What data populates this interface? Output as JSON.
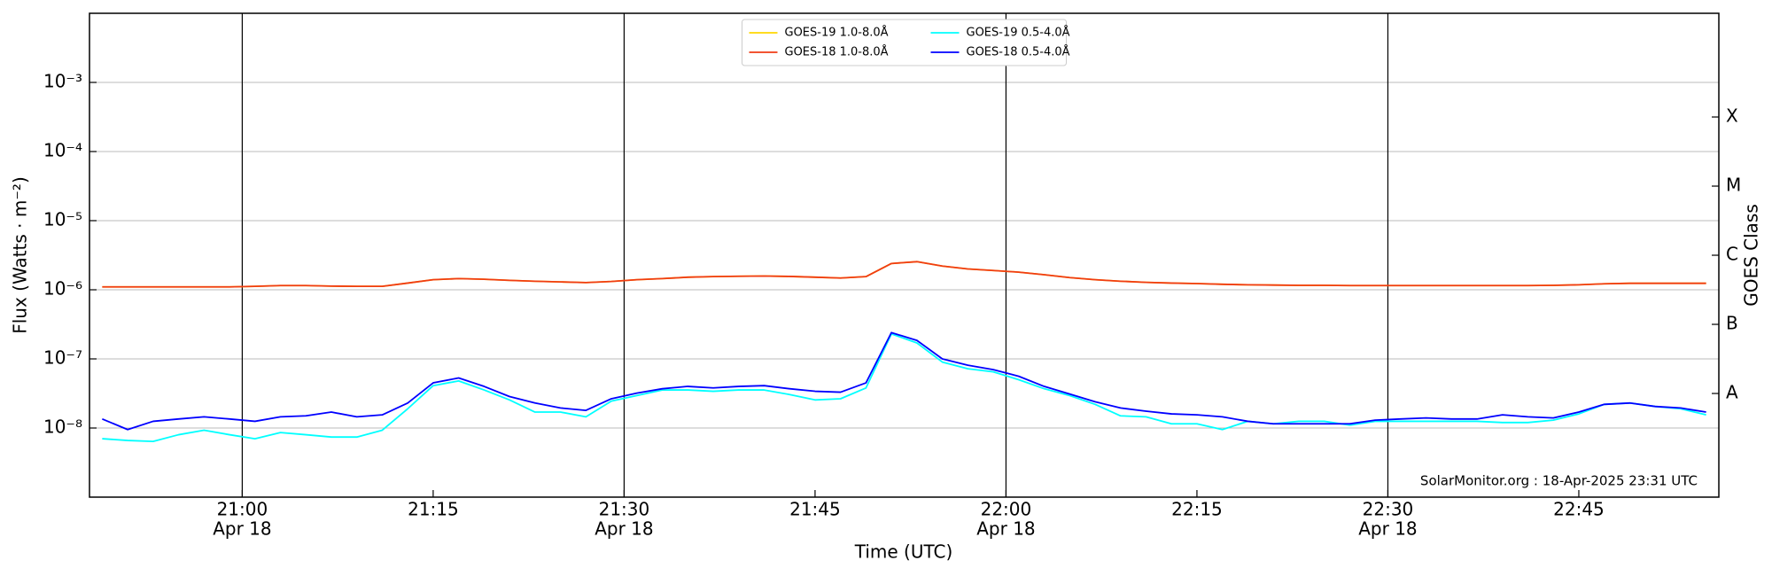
{
  "chart_data": {
    "type": "line",
    "xlabel": "Time (UTC)",
    "ylabel": "Flux (Watts · m⁻²)",
    "y2label": "GOES Class",
    "annotation": "SolarMonitor.org : 18-Apr-2025 23:31 UTC",
    "yscale": "log",
    "grid": true,
    "legend_loc": "upper center",
    "xlim": [
      "20:48",
      "22:56"
    ],
    "xticks": [
      {
        "value": "21:00",
        "label": "21:00",
        "sublabel": "Apr 18"
      },
      {
        "value": "21:15",
        "label": "21:15"
      },
      {
        "value": "21:30",
        "label": "21:30",
        "sublabel": "Apr 18"
      },
      {
        "value": "21:45",
        "label": "21:45"
      },
      {
        "value": "22:00",
        "label": "22:00",
        "sublabel": "Apr 18"
      },
      {
        "value": "22:15",
        "label": "22:15"
      },
      {
        "value": "22:30",
        "label": "22:30",
        "sublabel": "Apr 18"
      },
      {
        "value": "22:45",
        "label": "22:45"
      }
    ],
    "ylim": [
      1e-09,
      0.01
    ],
    "yticks": [
      {
        "value": 1e-08,
        "label": "10⁻⁸"
      },
      {
        "value": 1e-07,
        "label": "10⁻⁷"
      },
      {
        "value": 1e-06,
        "label": "10⁻⁶"
      },
      {
        "value": 1e-05,
        "label": "10⁻⁵"
      },
      {
        "value": 0.0001,
        "label": "10⁻⁴"
      },
      {
        "value": 0.001,
        "label": "10⁻³"
      }
    ],
    "y2lim": [
      1e-09,
      0.01
    ],
    "y2ticks": [
      {
        "value": 3.16e-08,
        "label": "A"
      },
      {
        "value": 3.16e-07,
        "label": "B"
      },
      {
        "value": 3.16e-06,
        "label": "C"
      },
      {
        "value": 3.16e-05,
        "label": "M"
      },
      {
        "value": 0.000316,
        "label": "X"
      }
    ],
    "x": [
      "20:49",
      "20:51",
      "20:53",
      "20:55",
      "20:57",
      "20:59",
      "21:01",
      "21:03",
      "21:05",
      "21:07",
      "21:09",
      "21:11",
      "21:13",
      "21:15",
      "21:17",
      "21:19",
      "21:21",
      "21:23",
      "21:25",
      "21:27",
      "21:29",
      "21:31",
      "21:33",
      "21:35",
      "21:37",
      "21:39",
      "21:41",
      "21:43",
      "21:45",
      "21:47",
      "21:49",
      "21:51",
      "21:53",
      "21:55",
      "21:57",
      "21:59",
      "22:01",
      "22:03",
      "22:05",
      "22:07",
      "22:09",
      "22:11",
      "22:13",
      "22:15",
      "22:17",
      "22:19",
      "22:21",
      "22:23",
      "22:25",
      "22:27",
      "22:29",
      "22:31",
      "22:33",
      "22:35",
      "22:37",
      "22:39",
      "22:41",
      "22:43",
      "22:45",
      "22:47",
      "22:49",
      "22:51",
      "22:53",
      "22:55"
    ],
    "series": [
      {
        "name": "GOES-19 1.0-8.0Å",
        "color": "#ffd700",
        "values": [
          1.1e-06,
          1.1e-06,
          1.1e-06,
          1.1e-06,
          1.1e-06,
          1.1e-06,
          1.12e-06,
          1.15e-06,
          1.15e-06,
          1.13e-06,
          1.12e-06,
          1.12e-06,
          1.25e-06,
          1.4e-06,
          1.45e-06,
          1.42e-06,
          1.37e-06,
          1.33e-06,
          1.3e-06,
          1.27e-06,
          1.32e-06,
          1.4e-06,
          1.45e-06,
          1.52e-06,
          1.55e-06,
          1.57e-06,
          1.58e-06,
          1.56e-06,
          1.52e-06,
          1.48e-06,
          1.55e-06,
          2.4e-06,
          2.55e-06,
          2.2e-06,
          2e-06,
          1.9e-06,
          1.8e-06,
          1.65e-06,
          1.5e-06,
          1.4e-06,
          1.33e-06,
          1.28e-06,
          1.25e-06,
          1.23e-06,
          1.2e-06,
          1.18e-06,
          1.17e-06,
          1.16e-06,
          1.16e-06,
          1.15e-06,
          1.15e-06,
          1.15e-06,
          1.15e-06,
          1.15e-06,
          1.15e-06,
          1.15e-06,
          1.15e-06,
          1.16e-06,
          1.18e-06,
          1.22e-06,
          1.24e-06,
          1.24e-06,
          1.24e-06,
          1.24e-06
        ]
      },
      {
        "name": "GOES-18 1.0-8.0Å",
        "color": "#f03c14",
        "values": [
          1.1e-06,
          1.1e-06,
          1.1e-06,
          1.1e-06,
          1.1e-06,
          1.1e-06,
          1.12e-06,
          1.15e-06,
          1.15e-06,
          1.13e-06,
          1.12e-06,
          1.12e-06,
          1.25e-06,
          1.4e-06,
          1.45e-06,
          1.42e-06,
          1.37e-06,
          1.33e-06,
          1.3e-06,
          1.27e-06,
          1.32e-06,
          1.4e-06,
          1.45e-06,
          1.52e-06,
          1.55e-06,
          1.57e-06,
          1.58e-06,
          1.56e-06,
          1.52e-06,
          1.48e-06,
          1.55e-06,
          2.4e-06,
          2.55e-06,
          2.2e-06,
          2e-06,
          1.9e-06,
          1.8e-06,
          1.65e-06,
          1.5e-06,
          1.4e-06,
          1.33e-06,
          1.28e-06,
          1.25e-06,
          1.23e-06,
          1.2e-06,
          1.18e-06,
          1.17e-06,
          1.16e-06,
          1.16e-06,
          1.15e-06,
          1.15e-06,
          1.15e-06,
          1.15e-06,
          1.15e-06,
          1.15e-06,
          1.15e-06,
          1.15e-06,
          1.16e-06,
          1.18e-06,
          1.22e-06,
          1.24e-06,
          1.24e-06,
          1.24e-06,
          1.24e-06
        ]
      },
      {
        "name": "GOES-19 0.5-4.0Å",
        "color": "#00ffff",
        "values": [
          7e-09,
          6.6e-09,
          6.4e-09,
          8e-09,
          9.3e-09,
          8e-09,
          7e-09,
          8.6e-09,
          8e-09,
          7.4e-09,
          7.4e-09,
          9.3e-09,
          1.9e-08,
          4.1e-08,
          4.8e-08,
          3.55e-08,
          2.55e-08,
          1.7e-08,
          1.7e-08,
          1.45e-08,
          2.45e-08,
          2.95e-08,
          3.55e-08,
          3.55e-08,
          3.4e-08,
          3.55e-08,
          3.55e-08,
          3.05e-08,
          2.55e-08,
          2.65e-08,
          3.8e-08,
          2.3e-07,
          1.7e-07,
          9e-08,
          7.2e-08,
          6.5e-08,
          5e-08,
          3.7e-08,
          2.95e-08,
          2.2e-08,
          1.5e-08,
          1.45e-08,
          1.15e-08,
          1.15e-08,
          9.5e-09,
          1.25e-08,
          1.15e-08,
          1.25e-08,
          1.25e-08,
          1.1e-08,
          1.25e-08,
          1.25e-08,
          1.25e-08,
          1.25e-08,
          1.25e-08,
          1.2e-08,
          1.2e-08,
          1.3e-08,
          1.6e-08,
          2.2e-08,
          2.3e-08,
          2.05e-08,
          1.9e-08,
          1.55e-08
        ]
      },
      {
        "name": "GOES-18 0.5-4.0Å",
        "color": "#0000ff",
        "values": [
          1.35e-08,
          9.5e-09,
          1.25e-08,
          1.35e-08,
          1.45e-08,
          1.35e-08,
          1.25e-08,
          1.45e-08,
          1.5e-08,
          1.7e-08,
          1.45e-08,
          1.55e-08,
          2.3e-08,
          4.5e-08,
          5.3e-08,
          4e-08,
          2.85e-08,
          2.3e-08,
          1.95e-08,
          1.8e-08,
          2.65e-08,
          3.2e-08,
          3.7e-08,
          4e-08,
          3.8e-08,
          4e-08,
          4.1e-08,
          3.7e-08,
          3.4e-08,
          3.3e-08,
          4.5e-08,
          2.4e-07,
          1.85e-07,
          1e-07,
          8.1e-08,
          7e-08,
          5.6e-08,
          4e-08,
          3.1e-08,
          2.4e-08,
          1.95e-08,
          1.75e-08,
          1.6e-08,
          1.55e-08,
          1.45e-08,
          1.25e-08,
          1.15e-08,
          1.15e-08,
          1.15e-08,
          1.15e-08,
          1.3e-08,
          1.35e-08,
          1.4e-08,
          1.35e-08,
          1.35e-08,
          1.55e-08,
          1.45e-08,
          1.4e-08,
          1.7e-08,
          2.2e-08,
          2.3e-08,
          2.05e-08,
          1.95e-08,
          1.7e-08
        ]
      }
    ]
  }
}
